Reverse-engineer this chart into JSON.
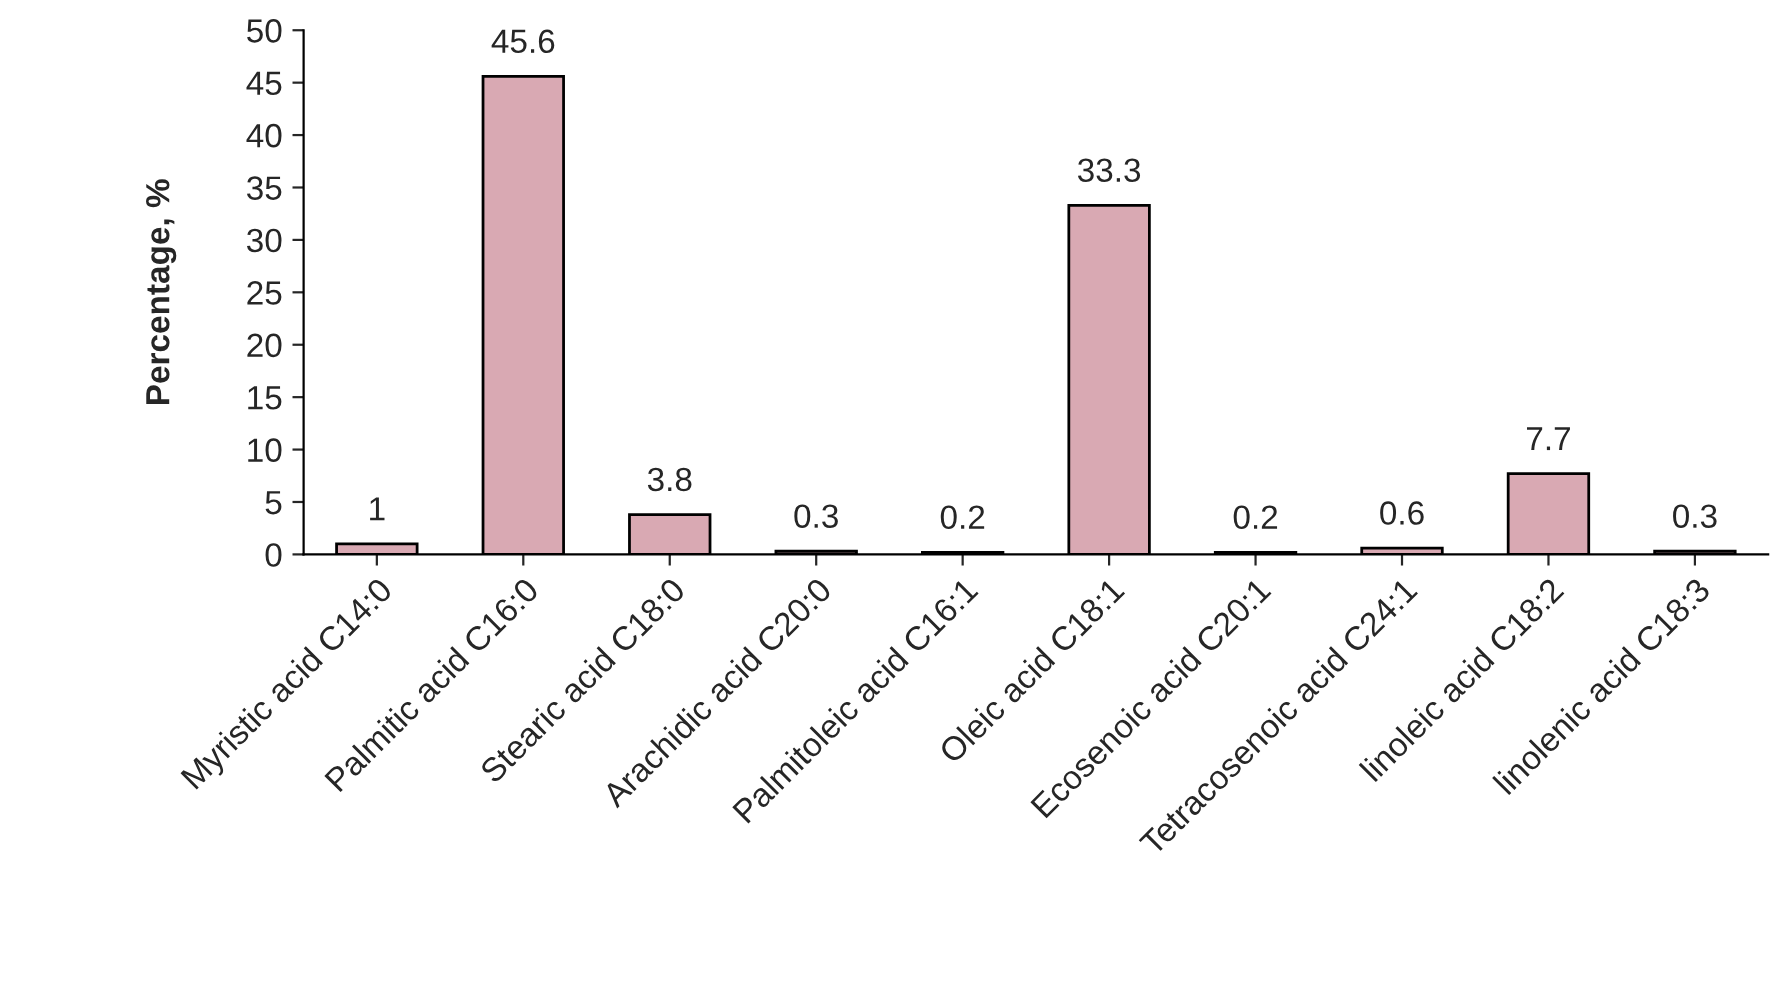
{
  "chart_data": {
    "type": "bar",
    "ylabel": "Percentage, %",
    "categories": [
      "Myristic acid C14:0",
      "Palmitic acid C16:0",
      "Stearic acid C18:0",
      "Arachidic acid C20:0",
      "Palmitoleic acid C16:1",
      "Oleic acid C18:1",
      "Ecosenoic acid C20:1",
      "Tetracosenoic acid C24:1",
      "linoleic acid C18:2",
      "linolenic acid C18:3"
    ],
    "values": [
      1,
      45.6,
      3.8,
      0.3,
      0.2,
      33.3,
      0.2,
      0.6,
      7.7,
      0.3
    ],
    "color": "#d9a9b3",
    "ylim": [
      0,
      50
    ],
    "yticks": [
      0,
      5,
      10,
      15,
      20,
      25,
      30,
      35,
      40,
      45,
      50
    ],
    "data_labels": true,
    "grid": false,
    "legend": false
  }
}
